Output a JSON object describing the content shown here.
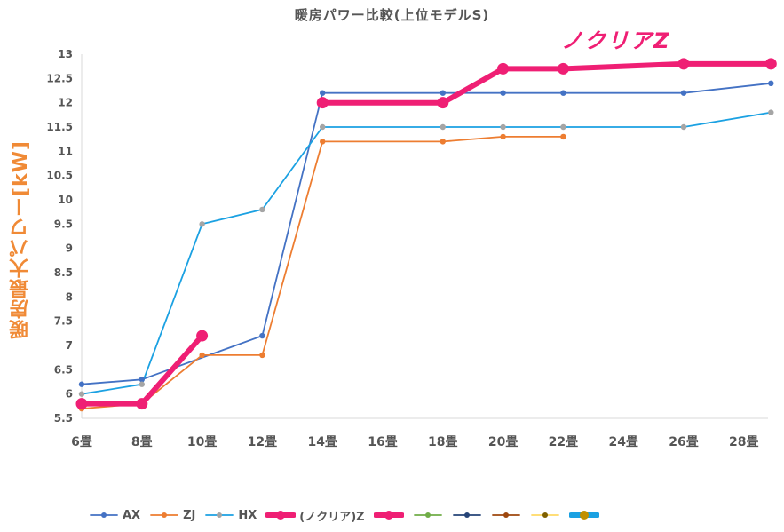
{
  "chart_data": {
    "type": "line",
    "title": "暖房パワー比較(上位モデルS)",
    "annotation": "ノクリアZ",
    "ylabel": "暖房最大パワー[kW]",
    "xlabel": "",
    "categories": [
      "6畳",
      "8畳",
      "10畳",
      "12畳",
      "14畳",
      "16畳",
      "18畳",
      "20畳",
      "22畳",
      "24畳",
      "26畳",
      "28畳"
    ],
    "ylim": [
      5.5,
      13
    ],
    "yticks": [
      "5.5",
      "6",
      "6.5",
      "7",
      "7.5",
      "8",
      "8.5",
      "9",
      "9.5",
      "10",
      "10.5",
      "11",
      "11.5",
      "12",
      "12.5",
      "13"
    ],
    "grid": false,
    "legend_position": "bottom",
    "series": [
      {
        "name": "AX",
        "color": "#4472c4",
        "points": [
          [
            0,
            6.2
          ],
          [
            1,
            6.3
          ],
          [
            3,
            7.2
          ],
          [
            4,
            12.2
          ],
          [
            6,
            12.2
          ],
          [
            7,
            12.2
          ],
          [
            8,
            12.2
          ],
          [
            10,
            12.2
          ],
          [
            11.45,
            12.4
          ]
        ]
      },
      {
        "name": "ZJ",
        "color": "#ed7d31",
        "points": [
          [
            0,
            5.7
          ],
          [
            1,
            5.8
          ],
          [
            2,
            6.8
          ],
          [
            3,
            6.8
          ],
          [
            4,
            11.2
          ],
          [
            6,
            11.2
          ],
          [
            7,
            11.3
          ],
          [
            8,
            11.3
          ]
        ]
      },
      {
        "name": "HX",
        "color": "#1ba1e2",
        "marker": "#a5a5a5",
        "points": [
          [
            0,
            6.0
          ],
          [
            1,
            6.2
          ],
          [
            2,
            9.5
          ],
          [
            3,
            9.8
          ],
          [
            4,
            11.5
          ],
          [
            6,
            11.5
          ],
          [
            7,
            11.5
          ],
          [
            8,
            11.5
          ],
          [
            10,
            11.5
          ],
          [
            11.45,
            11.8
          ]
        ]
      },
      {
        "name": "(ノクリア)Z",
        "color": "#ef1f74",
        "width": 6,
        "points": [
          [
            0,
            5.8
          ],
          [
            1,
            5.8
          ],
          [
            2,
            7.2
          ]
        ]
      },
      {
        "name": "",
        "color": "#ef1f74",
        "width": 6,
        "points": [
          [
            4,
            12.0
          ],
          [
            6,
            12.0
          ],
          [
            7,
            12.7
          ],
          [
            8,
            12.7
          ],
          [
            10,
            12.8
          ],
          [
            11.45,
            12.8
          ]
        ]
      },
      {
        "name": "",
        "color": "#70ad47",
        "points": []
      },
      {
        "name": "",
        "color": "#264478",
        "points": []
      },
      {
        "name": "",
        "color": "#9e480e",
        "points": []
      },
      {
        "name": "",
        "color": "#ffd966",
        "marker": "#7f6000",
        "points": []
      },
      {
        "name": "",
        "color": "#1ba1e2",
        "marker": "#c09000",
        "width": 6,
        "points": []
      }
    ]
  }
}
